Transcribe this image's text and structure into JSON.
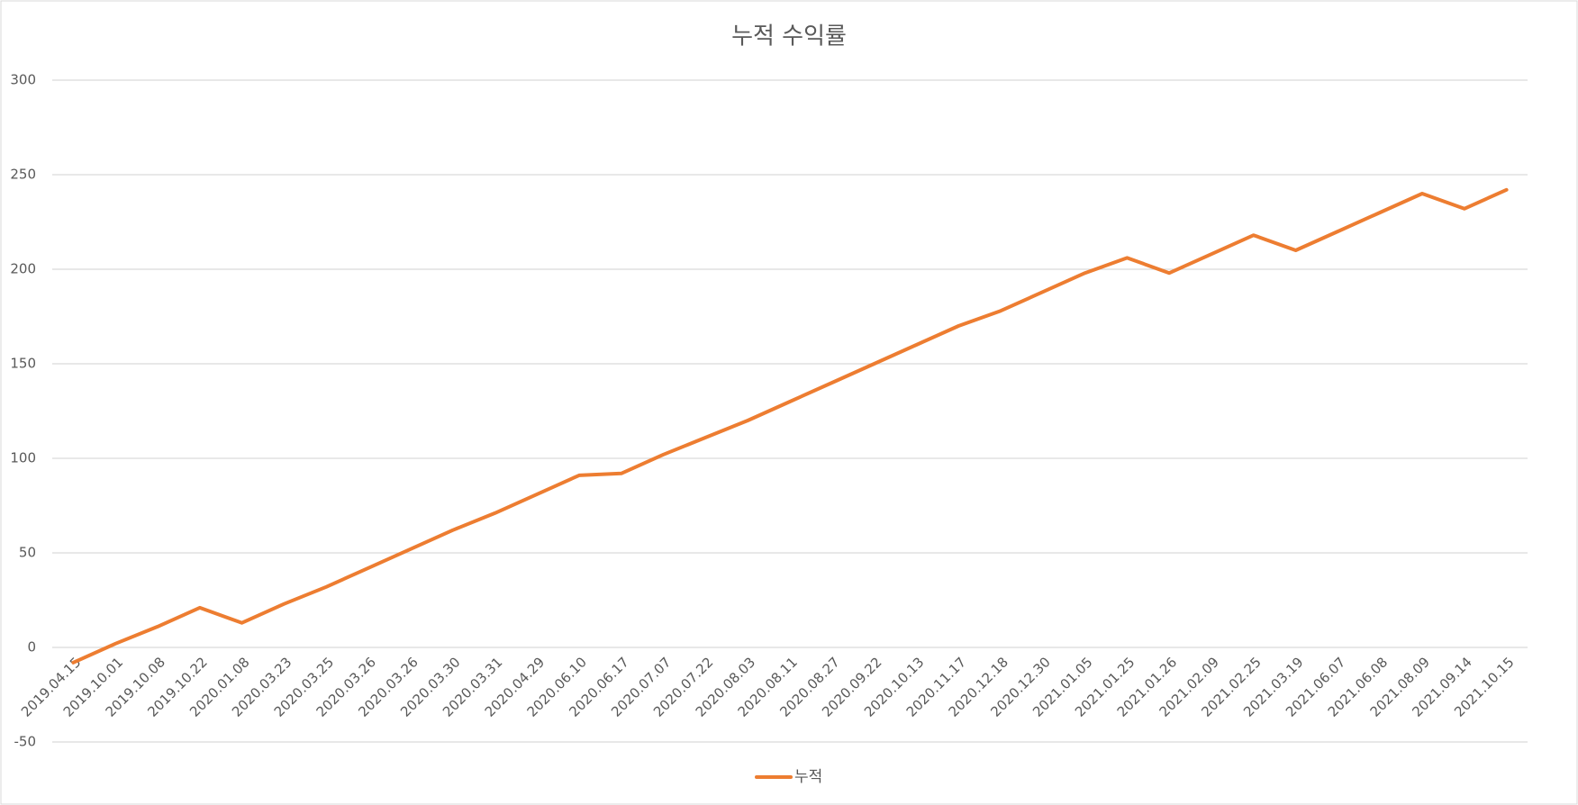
{
  "chart_data": {
    "type": "line",
    "title": "누적 수익률",
    "categories": [
      "2019.04.15",
      "2019.10.01",
      "2019.10.08",
      "2019.10.22",
      "2020.01.08",
      "2020.03.23",
      "2020.03.25",
      "2020.03.26",
      "2020.03.26",
      "2020.03.30",
      "2020.03.31",
      "2020.04.29",
      "2020.06.10",
      "2020.06.17",
      "2020.07.07",
      "2020.07.22",
      "2020.08.03",
      "2020.08.11",
      "2020.08.27",
      "2020.09.22",
      "2020.10.13",
      "2020.11.17",
      "2020.12.18",
      "2020.12.30",
      "2021.01.05",
      "2021.01.25",
      "2021.01.26",
      "2021.02.09",
      "2021.02.25",
      "2021.03.19",
      "2021.06.07",
      "2021.06.08",
      "2021.08.09",
      "2021.09.14",
      "2021.10.15"
    ],
    "series": [
      {
        "name": "누적",
        "color": "#ed7d31",
        "values": [
          -8,
          2,
          11,
          21,
          13,
          23,
          32,
          42,
          52,
          62,
          71,
          81,
          91,
          92,
          102,
          111,
          120,
          130,
          140,
          150,
          160,
          170,
          178,
          188,
          198,
          206,
          198,
          208,
          218,
          210,
          220,
          230,
          240,
          232,
          242
        ]
      }
    ],
    "ylim": [
      -50,
      300
    ],
    "yticks": [
      -50,
      0,
      50,
      100,
      150,
      200,
      250,
      300
    ],
    "grid": true,
    "legend": "bottom"
  }
}
